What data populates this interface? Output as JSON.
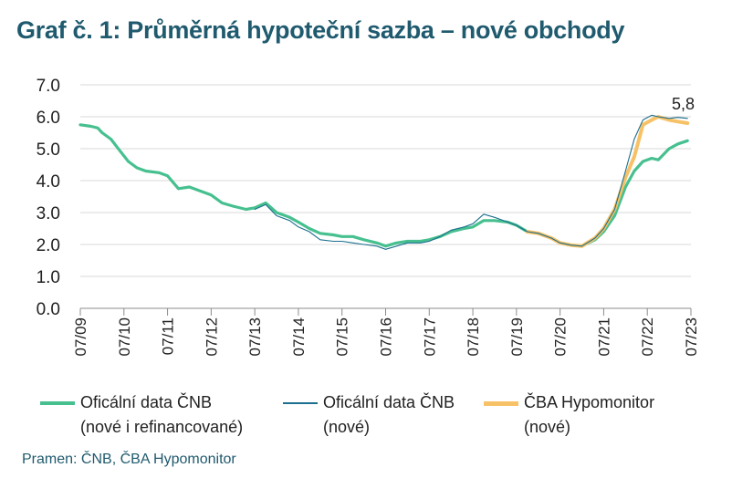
{
  "title": "Graf č. 1: Průměrná hypoteční sazba – nové obchody",
  "source": "Pramen: ČNB, ČBA Hypomonitor",
  "annotation": "5,8",
  "colors": {
    "cnb_all": "#46c08f",
    "cnb_new": "#1c6f8e",
    "cba": "#f7c267"
  },
  "legend": [
    {
      "line1": "Oficální data ČNB",
      "line2": "(nové i refinancované)"
    },
    {
      "line1": "Oficální data ČNB",
      "line2": "(nové)"
    },
    {
      "line1": "ČBA Hypomonitor",
      "line2": "(nové)"
    }
  ],
  "chart_data": {
    "type": "line",
    "ylim": [
      0,
      7
    ],
    "yticks": [
      "0.0",
      "1.0",
      "2.0",
      "3.0",
      "4.0",
      "5.0",
      "6.0",
      "7.0"
    ],
    "xlim": [
      2009.5,
      2023.5
    ],
    "xticks": [
      "07/09",
      "07/10",
      "07/11",
      "07/12",
      "07/13",
      "07/14",
      "07/15",
      "07/16",
      "07/17",
      "07/18",
      "07/19",
      "07/20",
      "07/21",
      "07/22",
      "07/23"
    ],
    "grid": "horizontal",
    "legend_position": "bottom",
    "series": [
      {
        "name": "Oficální data ČNB (nové i refinancované)",
        "x": [
          2009.5,
          2009.75,
          2009.9,
          2010.0,
          2010.2,
          2010.4,
          2010.6,
          2010.8,
          2011.0,
          2011.3,
          2011.5,
          2011.75,
          2012.0,
          2012.3,
          2012.5,
          2012.75,
          2013.0,
          2013.3,
          2013.5,
          2013.75,
          2014.0,
          2014.3,
          2014.5,
          2014.75,
          2015.0,
          2015.3,
          2015.5,
          2015.75,
          2016.0,
          2016.3,
          2016.5,
          2016.75,
          2017.0,
          2017.3,
          2017.5,
          2017.75,
          2018.0,
          2018.3,
          2018.5,
          2018.75,
          2019.0,
          2019.3,
          2019.5,
          2019.75,
          2020.0,
          2020.3,
          2020.5,
          2020.75,
          2021.0,
          2021.3,
          2021.5,
          2021.75,
          2022.0,
          2022.2,
          2022.4,
          2022.6,
          2022.75,
          2023.0,
          2023.2,
          2023.42
        ],
        "values": [
          5.75,
          5.7,
          5.65,
          5.5,
          5.3,
          4.95,
          4.6,
          4.4,
          4.3,
          4.25,
          4.15,
          3.75,
          3.8,
          3.65,
          3.55,
          3.3,
          3.2,
          3.1,
          3.15,
          3.3,
          3.0,
          2.85,
          2.7,
          2.5,
          2.35,
          2.3,
          2.25,
          2.25,
          2.15,
          2.05,
          1.95,
          2.05,
          2.1,
          2.1,
          2.15,
          2.25,
          2.4,
          2.5,
          2.55,
          2.75,
          2.75,
          2.7,
          2.6,
          2.4,
          2.35,
          2.2,
          2.05,
          1.98,
          1.95,
          2.15,
          2.4,
          2.9,
          3.8,
          4.3,
          4.6,
          4.7,
          4.65,
          5.0,
          5.15,
          5.25
        ]
      },
      {
        "name": "Oficální data ČNB (nové)",
        "x": [
          2013.5,
          2013.75,
          2014.0,
          2014.3,
          2014.5,
          2014.75,
          2015.0,
          2015.3,
          2015.5,
          2015.75,
          2016.0,
          2016.3,
          2016.5,
          2016.75,
          2017.0,
          2017.3,
          2017.5,
          2017.75,
          2018.0,
          2018.3,
          2018.5,
          2018.75,
          2019.0,
          2019.3,
          2019.5,
          2019.75,
          2020.0,
          2020.3,
          2020.5,
          2020.75,
          2021.0,
          2021.3,
          2021.5,
          2021.75,
          2022.0,
          2022.2,
          2022.4,
          2022.6,
          2022.75,
          2023.0,
          2023.2,
          2023.42
        ],
        "values": [
          3.1,
          3.25,
          2.9,
          2.75,
          2.55,
          2.4,
          2.15,
          2.1,
          2.1,
          2.05,
          2.0,
          1.95,
          1.85,
          1.95,
          2.05,
          2.05,
          2.1,
          2.25,
          2.45,
          2.55,
          2.65,
          2.95,
          2.85,
          2.7,
          2.6,
          2.4,
          2.35,
          2.2,
          2.05,
          1.98,
          1.95,
          2.2,
          2.5,
          3.1,
          4.3,
          5.3,
          5.9,
          6.05,
          6.0,
          5.95,
          5.98,
          5.95
        ]
      },
      {
        "name": "ČBA Hypomonitor (nové)",
        "x": [
          2019.75,
          2020.0,
          2020.3,
          2020.5,
          2020.75,
          2021.0,
          2021.3,
          2021.5,
          2021.75,
          2022.0,
          2022.2,
          2022.4,
          2022.6,
          2022.75,
          2023.0,
          2023.2,
          2023.42
        ],
        "values": [
          2.4,
          2.35,
          2.2,
          2.05,
          1.98,
          1.95,
          2.2,
          2.5,
          3.1,
          4.1,
          4.75,
          5.75,
          5.9,
          6.0,
          5.9,
          5.85,
          5.8
        ]
      }
    ]
  }
}
